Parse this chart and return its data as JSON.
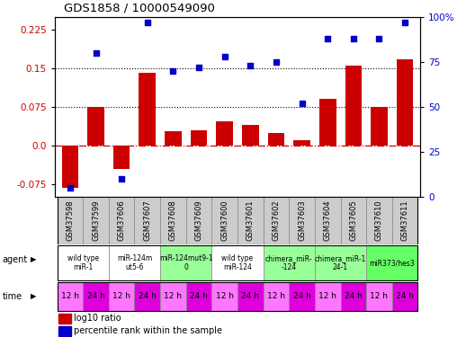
{
  "title": "GDS1858 / 10000549090",
  "samples": [
    "GSM37598",
    "GSM37599",
    "GSM37606",
    "GSM37607",
    "GSM37608",
    "GSM37609",
    "GSM37600",
    "GSM37601",
    "GSM37602",
    "GSM37603",
    "GSM37604",
    "GSM37605",
    "GSM37610",
    "GSM37611"
  ],
  "log10_ratio": [
    -0.082,
    0.075,
    -0.045,
    0.142,
    0.028,
    0.03,
    0.048,
    0.04,
    0.025,
    0.01,
    0.09,
    0.155,
    0.075,
    0.168
  ],
  "percentile": [
    5,
    80,
    10,
    97,
    70,
    72,
    78,
    73,
    75,
    52,
    88,
    88,
    88,
    97
  ],
  "ylim_left": [
    -0.1,
    0.25
  ],
  "ylim_right": [
    0,
    100
  ],
  "yticks_left": [
    -0.075,
    0.0,
    0.075,
    0.15,
    0.225
  ],
  "yticks_right": [
    0,
    25,
    50,
    75,
    100
  ],
  "bar_color": "#cc0000",
  "dot_color": "#0000cc",
  "zero_line_color": "#cc0000",
  "dotted_line_values": [
    0.075,
    0.15
  ],
  "agent_groups": [
    {
      "label": "wild type\nmiR-1",
      "start": 0,
      "end": 2,
      "color": "#ffffff"
    },
    {
      "label": "miR-124m\nut5-6",
      "start": 2,
      "end": 4,
      "color": "#ffffff"
    },
    {
      "label": "miR-124mut9-1\n0",
      "start": 4,
      "end": 6,
      "color": "#99ff99"
    },
    {
      "label": "wild type\nmiR-124",
      "start": 6,
      "end": 8,
      "color": "#ffffff"
    },
    {
      "label": "chimera_miR-\n-124",
      "start": 8,
      "end": 10,
      "color": "#99ff99"
    },
    {
      "label": "chimera_miR-1\n24-1",
      "start": 10,
      "end": 12,
      "color": "#99ff99"
    },
    {
      "label": "miR373/hes3",
      "start": 12,
      "end": 14,
      "color": "#66ff66"
    }
  ],
  "time_labels": [
    "12 h",
    "24 h",
    "12 h",
    "24 h",
    "12 h",
    "24 h",
    "12 h",
    "24 h",
    "12 h",
    "24 h",
    "12 h",
    "24 h",
    "12 h",
    "24 h"
  ],
  "time_color_even": "#ff77ff",
  "time_color_odd": "#dd00dd",
  "background_color": "#ffffff",
  "gsm_bg": "#cccccc"
}
